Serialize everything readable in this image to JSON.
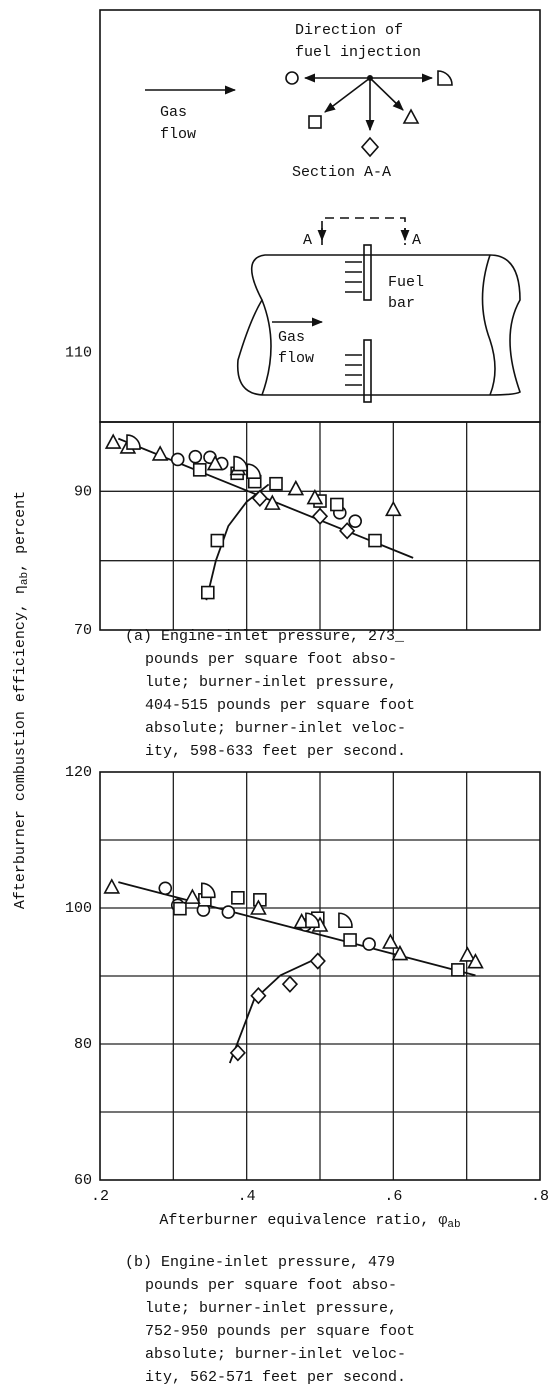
{
  "figure": {
    "y_label": {
      "main": "Afterburner combustion efficiency, η",
      "sub": "ab",
      "rest": ", percent"
    }
  },
  "diagram": {
    "direction": [
      "Direction of",
      "fuel injection"
    ],
    "gas_flow_top": [
      "Gas",
      "flow"
    ],
    "section": "Section A-A",
    "section_marks": [
      "A",
      "A"
    ],
    "fuel_bar": [
      "Fuel",
      "bar"
    ],
    "gas_flow_bottom": [
      "Gas",
      "flow"
    ]
  },
  "chart_data": [
    {
      "type": "scatter",
      "xlim": [
        0.2,
        0.8
      ],
      "ylim": [
        70,
        100
      ],
      "yticks": [
        70,
        90,
        110
      ],
      "ygrid": [
        80,
        90
      ],
      "xgrid": [
        0.3,
        0.4,
        0.5,
        0.6,
        0.7
      ],
      "caption": [
        "(a) Engine-inlet pressure, 273_",
        "pounds per square foot abso-",
        "lute; burner-inlet pressure,",
        "404-515 pounds per square foot",
        "absolute; burner-inlet veloc-",
        "ity, 598-633 feet per second."
      ],
      "series": [
        {
          "marker": "circle",
          "x": [
            0.306,
            0.33,
            0.35,
            0.366,
            0.527,
            0.548
          ],
          "values": [
            94.6,
            95,
            94.9,
            94,
            86.9,
            85.7
          ]
        },
        {
          "marker": "square",
          "x": [
            0.336,
            0.387,
            0.411,
            0.44,
            0.5,
            0.523,
            0.36,
            0.347,
            0.575
          ],
          "values": [
            93.1,
            92.6,
            91.4,
            91.1,
            88.6,
            88.1,
            82.9,
            75.4,
            82.9
          ]
        },
        {
          "marker": "diamond",
          "x": [
            0.418,
            0.5,
            0.537
          ],
          "values": [
            89,
            86.4,
            84.3
          ]
        },
        {
          "marker": "triangle",
          "x": [
            0.218,
            0.238,
            0.282,
            0.357,
            0.388,
            0.435,
            0.467,
            0.493,
            0.6
          ],
          "values": [
            97.1,
            96.4,
            95.4,
            94,
            93.3,
            88.3,
            90.4,
            89.1,
            87.4
          ]
        },
        {
          "marker": "half-circle",
          "x": [
            0.245,
            0.391,
            0.409
          ],
          "values": [
            97.1,
            94,
            92.9
          ]
        }
      ],
      "curves": [
        {
          "x": [
            0.225,
            0.627
          ],
          "values": [
            97.6,
            80.4
          ]
        },
        {
          "x": [
            0.345,
            0.358,
            0.375,
            0.4,
            0.43
          ],
          "values": [
            74.3,
            80,
            85,
            88.5,
            91
          ]
        }
      ]
    },
    {
      "type": "scatter",
      "xlim": [
        0.2,
        0.8
      ],
      "ylim": [
        60,
        120
      ],
      "xticks": [
        {
          "value": 0.2,
          "label": ".2"
        },
        {
          "value": 0.4,
          "label": ".4"
        },
        {
          "value": 0.6,
          "label": ".6"
        },
        {
          "value": 0.8,
          "label": ".8"
        }
      ],
      "xgrid": [
        0.3,
        0.4,
        0.5,
        0.6,
        0.7
      ],
      "yticks": [
        60,
        80,
        100,
        120
      ],
      "ygrid": [
        70,
        80,
        90,
        100,
        110
      ],
      "x_label": {
        "main": "Afterburner equivalence ratio, φ",
        "sub": "ab"
      },
      "caption": [
        "(b) Engine-inlet pressure, 479",
        "pounds per square foot abso-",
        "lute; burner-inlet pressure,",
        "752-950 pounds per square foot",
        "absolute; burner-inlet veloc-",
        "ity, 562-571 feet per second."
      ],
      "series": [
        {
          "marker": "circle",
          "x": [
            0.289,
            0.306,
            0.341,
            0.375,
            0.48,
            0.567
          ],
          "values": [
            102.9,
            100.4,
            99.7,
            99.4,
            97.5,
            94.7
          ]
        },
        {
          "marker": "square",
          "x": [
            0.309,
            0.343,
            0.388,
            0.418,
            0.541,
            0.688,
            0.497
          ],
          "values": [
            99.9,
            101.2,
            101.5,
            101.2,
            95.3,
            90.9,
            98.5
          ]
        },
        {
          "marker": "diamond",
          "x": [
            0.388,
            0.416,
            0.459,
            0.497
          ],
          "values": [
            78.7,
            87.1,
            88.8,
            92.2
          ]
        },
        {
          "marker": "triangle",
          "x": [
            0.216,
            0.326,
            0.416,
            0.5,
            0.596,
            0.609,
            0.701,
            0.712,
            0.475
          ],
          "values": [
            103.1,
            101.6,
            100,
            97.5,
            95,
            93.3,
            93.1,
            92.1,
            98
          ]
        },
        {
          "marker": "half-circle",
          "x": [
            0.347,
            0.534,
            0.489
          ],
          "values": [
            102.6,
            98.2,
            98.2
          ]
        }
      ],
      "curves": [
        {
          "x": [
            0.225,
            0.712
          ],
          "values": [
            103.8,
            90.1
          ]
        },
        {
          "x": [
            0.377,
            0.41,
            0.446,
            0.5
          ],
          "values": [
            77.2,
            86.5,
            90.1,
            92.8
          ]
        }
      ]
    }
  ]
}
